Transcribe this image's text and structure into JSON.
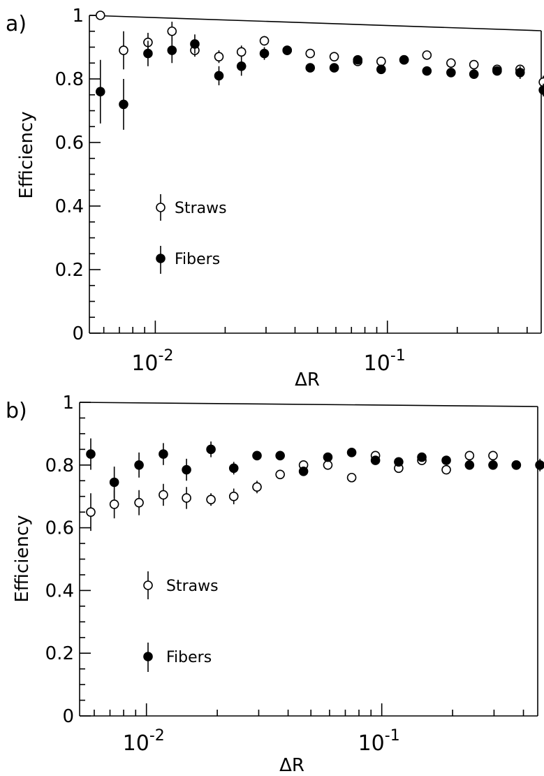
{
  "chart_data": [
    {
      "panel_label": "a)",
      "type": "scatter",
      "xlabel": "ΔR",
      "ylabel": "Efficiency",
      "x_scale": "log",
      "xlim": [
        0.0052,
        0.46
      ],
      "ylim": [
        0,
        1
      ],
      "y_ticks": [
        "0",
        "0.2",
        "0.4",
        "0.6",
        "0.8",
        "1"
      ],
      "x_ticks": [
        {
          "value": 0.01,
          "base": "10",
          "exp": "-2"
        },
        {
          "value": 0.1,
          "base": "10",
          "exp": "-1"
        }
      ],
      "legend": {
        "placement": "middle-left",
        "entries": [
          "Straws",
          "Fibers"
        ]
      },
      "series": [
        {
          "name": "Straws",
          "marker": "open-circle",
          "points": [
            {
              "x": 0.0058,
              "y": 1.0,
              "err": 0.0
            },
            {
              "x": 0.0073,
              "y": 0.89,
              "err": 0.06
            },
            {
              "x": 0.0093,
              "y": 0.915,
              "err": 0.03
            },
            {
              "x": 0.0118,
              "y": 0.95,
              "err": 0.03
            },
            {
              "x": 0.0148,
              "y": 0.89,
              "err": 0.02
            },
            {
              "x": 0.0188,
              "y": 0.87,
              "err": 0.02
            },
            {
              "x": 0.0235,
              "y": 0.885,
              "err": 0.02
            },
            {
              "x": 0.0295,
              "y": 0.92,
              "err": 0.015
            },
            {
              "x": 0.037,
              "y": 0.89,
              "err": 0.01
            },
            {
              "x": 0.0465,
              "y": 0.88,
              "err": 0.01
            },
            {
              "x": 0.059,
              "y": 0.87,
              "err": 0.01
            },
            {
              "x": 0.0745,
              "y": 0.855,
              "err": 0.01
            },
            {
              "x": 0.094,
              "y": 0.855,
              "err": 0.01
            },
            {
              "x": 0.118,
              "y": 0.86,
              "err": 0.01
            },
            {
              "x": 0.148,
              "y": 0.875,
              "err": 0.01
            },
            {
              "x": 0.188,
              "y": 0.85,
              "err": 0.01
            },
            {
              "x": 0.236,
              "y": 0.845,
              "err": 0.01
            },
            {
              "x": 0.297,
              "y": 0.83,
              "err": 0.01
            },
            {
              "x": 0.373,
              "y": 0.83,
              "err": 0.01
            },
            {
              "x": 0.47,
              "y": 0.79,
              "err": 0.02
            }
          ]
        },
        {
          "name": "Fibers",
          "marker": "filled-circle",
          "points": [
            {
              "x": 0.0058,
              "y": 0.76,
              "err": 0.1
            },
            {
              "x": 0.0073,
              "y": 0.72,
              "err": 0.08
            },
            {
              "x": 0.0093,
              "y": 0.88,
              "err": 0.04
            },
            {
              "x": 0.0118,
              "y": 0.89,
              "err": 0.04
            },
            {
              "x": 0.0148,
              "y": 0.91,
              "err": 0.03
            },
            {
              "x": 0.0188,
              "y": 0.81,
              "err": 0.03
            },
            {
              "x": 0.0235,
              "y": 0.84,
              "err": 0.03
            },
            {
              "x": 0.0295,
              "y": 0.88,
              "err": 0.02
            },
            {
              "x": 0.037,
              "y": 0.89,
              "err": 0.01
            },
            {
              "x": 0.0465,
              "y": 0.835,
              "err": 0.01
            },
            {
              "x": 0.059,
              "y": 0.835,
              "err": 0.01
            },
            {
              "x": 0.0745,
              "y": 0.86,
              "err": 0.01
            },
            {
              "x": 0.094,
              "y": 0.83,
              "err": 0.01
            },
            {
              "x": 0.118,
              "y": 0.86,
              "err": 0.01
            },
            {
              "x": 0.148,
              "y": 0.825,
              "err": 0.01
            },
            {
              "x": 0.188,
              "y": 0.82,
              "err": 0.01
            },
            {
              "x": 0.236,
              "y": 0.815,
              "err": 0.01
            },
            {
              "x": 0.297,
              "y": 0.825,
              "err": 0.01
            },
            {
              "x": 0.373,
              "y": 0.82,
              "err": 0.02
            },
            {
              "x": 0.47,
              "y": 0.765,
              "err": 0.02
            }
          ]
        }
      ]
    },
    {
      "panel_label": "b)",
      "type": "scatter",
      "xlabel": "ΔR",
      "ylabel": "Efficiency",
      "x_scale": "log",
      "xlim": [
        0.0052,
        0.46
      ],
      "ylim": [
        0,
        1
      ],
      "y_ticks": [
        "0",
        "0.2",
        "0.4",
        "0.6",
        "0.8",
        "1"
      ],
      "x_ticks": [
        {
          "value": 0.01,
          "base": "10",
          "exp": "-2"
        },
        {
          "value": 0.1,
          "base": "10",
          "exp": "-1"
        }
      ],
      "legend": {
        "placement": "middle-left",
        "entries": [
          "Straws",
          "Fibers"
        ]
      },
      "series": [
        {
          "name": "Straws",
          "marker": "open-circle",
          "points": [
            {
              "x": 0.0058,
              "y": 0.65,
              "err": 0.06
            },
            {
              "x": 0.0073,
              "y": 0.675,
              "err": 0.045
            },
            {
              "x": 0.0093,
              "y": 0.68,
              "err": 0.04
            },
            {
              "x": 0.0118,
              "y": 0.705,
              "err": 0.035
            },
            {
              "x": 0.0148,
              "y": 0.695,
              "err": 0.035
            },
            {
              "x": 0.0188,
              "y": 0.69,
              "err": 0.02
            },
            {
              "x": 0.0235,
              "y": 0.7,
              "err": 0.025
            },
            {
              "x": 0.0295,
              "y": 0.73,
              "err": 0.02
            },
            {
              "x": 0.037,
              "y": 0.77,
              "err": 0.015
            },
            {
              "x": 0.0465,
              "y": 0.8,
              "err": 0.015
            },
            {
              "x": 0.059,
              "y": 0.8,
              "err": 0.01
            },
            {
              "x": 0.0745,
              "y": 0.76,
              "err": 0.01
            },
            {
              "x": 0.094,
              "y": 0.83,
              "err": 0.01
            },
            {
              "x": 0.118,
              "y": 0.79,
              "err": 0.01
            },
            {
              "x": 0.148,
              "y": 0.815,
              "err": 0.01
            },
            {
              "x": 0.188,
              "y": 0.785,
              "err": 0.01
            },
            {
              "x": 0.236,
              "y": 0.83,
              "err": 0.01
            },
            {
              "x": 0.297,
              "y": 0.83,
              "err": 0.01
            },
            {
              "x": 0.373,
              "y": 0.8,
              "err": 0.01
            },
            {
              "x": 0.47,
              "y": 0.8,
              "err": 0.01
            }
          ]
        },
        {
          "name": "Fibers",
          "marker": "filled-circle",
          "points": [
            {
              "x": 0.0058,
              "y": 0.835,
              "err": 0.05
            },
            {
              "x": 0.0073,
              "y": 0.745,
              "err": 0.05
            },
            {
              "x": 0.0093,
              "y": 0.8,
              "err": 0.04
            },
            {
              "x": 0.0118,
              "y": 0.835,
              "err": 0.035
            },
            {
              "x": 0.0148,
              "y": 0.785,
              "err": 0.035
            },
            {
              "x": 0.0188,
              "y": 0.85,
              "err": 0.025
            },
            {
              "x": 0.0235,
              "y": 0.79,
              "err": 0.02
            },
            {
              "x": 0.0295,
              "y": 0.83,
              "err": 0.015
            },
            {
              "x": 0.037,
              "y": 0.83,
              "err": 0.015
            },
            {
              "x": 0.0465,
              "y": 0.78,
              "err": 0.015
            },
            {
              "x": 0.059,
              "y": 0.825,
              "err": 0.01
            },
            {
              "x": 0.0745,
              "y": 0.84,
              "err": 0.01
            },
            {
              "x": 0.094,
              "y": 0.815,
              "err": 0.01
            },
            {
              "x": 0.118,
              "y": 0.81,
              "err": 0.01
            },
            {
              "x": 0.148,
              "y": 0.825,
              "err": 0.01
            },
            {
              "x": 0.188,
              "y": 0.815,
              "err": 0.01
            },
            {
              "x": 0.236,
              "y": 0.8,
              "err": 0.01
            },
            {
              "x": 0.297,
              "y": 0.8,
              "err": 0.01
            },
            {
              "x": 0.373,
              "y": 0.8,
              "err": 0.015
            },
            {
              "x": 0.47,
              "y": 0.8,
              "err": 0.02
            }
          ]
        }
      ]
    }
  ]
}
